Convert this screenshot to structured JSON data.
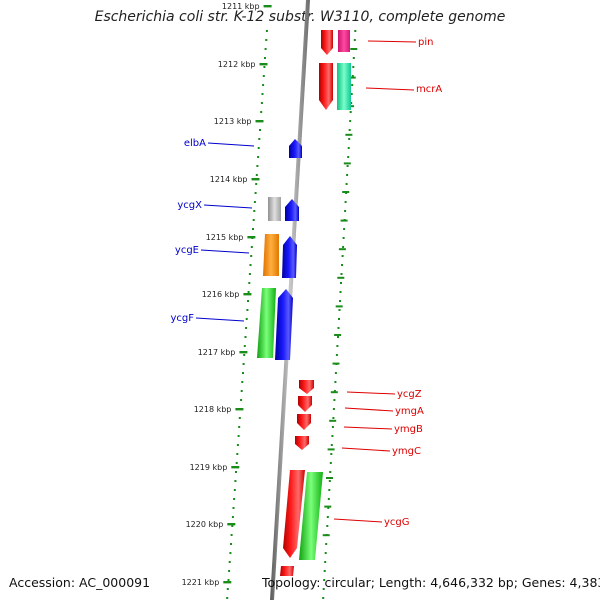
{
  "title": "Escherichia coli str. K-12 substr. W3110, complete genome",
  "accession": "Accession: AC_000091",
  "topology": "Topology: circular; Length: 4,646,332 bp; Genes: 4,383",
  "kbp_ticks": [
    "1211 kbp",
    "1212 kbp",
    "1213 kbp",
    "1214 kbp",
    "1215 kbp",
    "1216 kbp",
    "1217 kbp",
    "1218 kbp",
    "1219 kbp",
    "1220 kbp",
    "1221 kbp"
  ],
  "genes_left": [
    {
      "name": "elbA",
      "color": "#0000dd"
    },
    {
      "name": "ycgX",
      "color": "#0000dd"
    },
    {
      "name": "ycgE",
      "color": "#0000dd"
    },
    {
      "name": "ycgF",
      "color": "#0000dd"
    }
  ],
  "genes_right": [
    {
      "name": "pin",
      "color": "#dd0000"
    },
    {
      "name": "mcrA",
      "color": "#dd0000"
    },
    {
      "name": "ycgZ",
      "color": "#dd0000"
    },
    {
      "name": "ymgA",
      "color": "#dd0000"
    },
    {
      "name": "ymgB",
      "color": "#dd0000"
    },
    {
      "name": "ymgC",
      "color": "#dd0000"
    },
    {
      "name": "ycgG",
      "color": "#dd0000"
    }
  ],
  "colors": {
    "backbone": "#8a8a8a",
    "tick_green": "#1a8c1a",
    "red": "#ee0000",
    "magenta": "#ff2d8a",
    "mint": "#22e8a0",
    "blue": "#0000ee",
    "gray": "#b8b8b8",
    "orange": "#ff8c00",
    "green": "#2ac82a"
  }
}
